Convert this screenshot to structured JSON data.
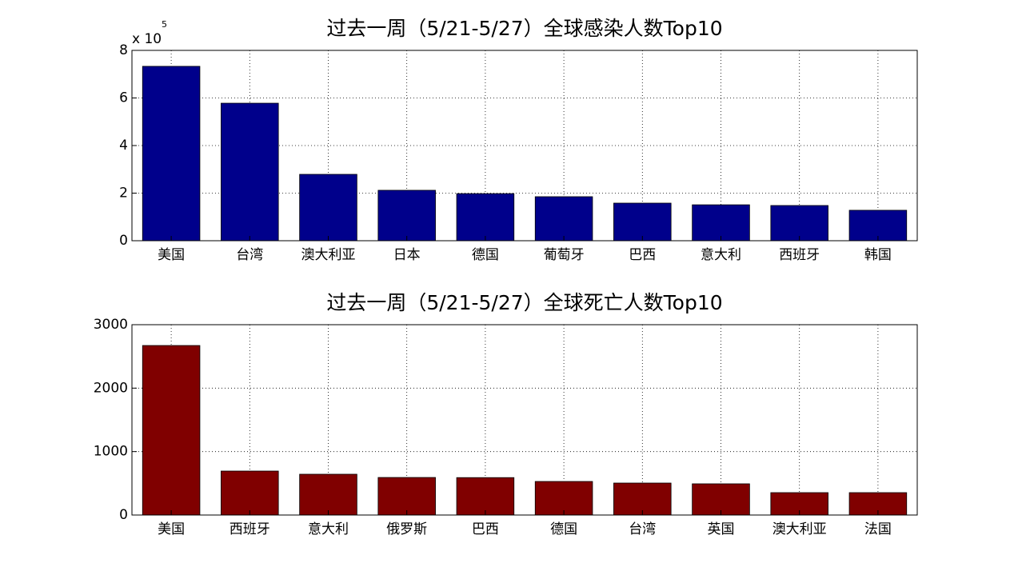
{
  "chart_data": [
    {
      "type": "bar",
      "title": "过去一周（5/21-5/27）全球感染人数Top10",
      "y_scale_label": "x 10",
      "y_scale_exponent": "5",
      "categories": [
        "美国",
        "台湾",
        "澳大利亚",
        "日本",
        "德国",
        "葡萄牙",
        "巴西",
        "意大利",
        "西班牙",
        "韩国"
      ],
      "values": [
        7.33,
        5.78,
        2.79,
        2.12,
        1.98,
        1.85,
        1.58,
        1.51,
        1.48,
        1.28
      ],
      "color": "#00008b",
      "ylim": [
        0,
        8
      ],
      "yticks": [
        0,
        2,
        4,
        6,
        8
      ],
      "grid": true
    },
    {
      "type": "bar",
      "title": "过去一周（5/21-5/27）全球死亡人数Top10",
      "categories": [
        "美国",
        "西班牙",
        "意大利",
        "俄罗斯",
        "巴西",
        "德国",
        "台湾",
        "英国",
        "澳大利亚",
        "法国"
      ],
      "values": [
        2672,
        693,
        643,
        592,
        590,
        529,
        504,
        492,
        353,
        353
      ],
      "color": "#800000",
      "ylim": [
        0,
        3000
      ],
      "yticks": [
        0,
        1000,
        2000,
        3000
      ],
      "grid": true
    }
  ]
}
